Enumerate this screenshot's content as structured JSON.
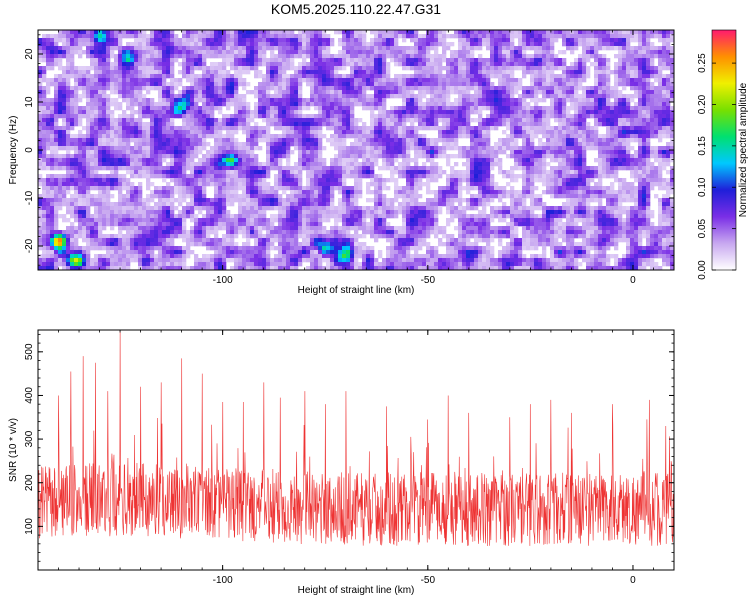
{
  "figure": {
    "title": "KOM5.2025.110.22.47.G31"
  },
  "chart_data": [
    {
      "type": "heatmap",
      "xlabel": "Height of straight line (km)",
      "ylabel": "Frequency (Hz)",
      "xlim": [
        -145,
        10
      ],
      "ylim": [
        -25,
        25
      ],
      "xticks": [
        -100,
        -50,
        0
      ],
      "yticks": [
        -20,
        -10,
        0,
        10,
        20
      ],
      "colorbar": {
        "label": "Normalized spectral amplitude",
        "range": [
          0.0,
          0.29
        ],
        "ticks": [
          "0.00",
          "0.05",
          "0.10",
          "0.15",
          "0.20",
          "0.25"
        ],
        "colormap": [
          "#ffffff",
          "#c8a8f0",
          "#7a2ee6",
          "#1f1fd9",
          "#00c8ff",
          "#00e070",
          "#78e000",
          "#f0f000",
          "#ff9000",
          "#ff1a6e"
        ]
      },
      "hotspots": [
        {
          "x": -140,
          "y": -19,
          "value": 0.22
        },
        {
          "x": -136,
          "y": -23,
          "value": 0.18
        },
        {
          "x": -130,
          "y": 24,
          "value": 0.12
        },
        {
          "x": -123,
          "y": 19,
          "value": 0.11
        },
        {
          "x": -98,
          "y": -2,
          "value": 0.1
        },
        {
          "x": -75,
          "y": -20,
          "value": 0.11
        },
        {
          "x": -70,
          "y": -22,
          "value": 0.1
        },
        {
          "x": -110,
          "y": 9,
          "value": 0.08
        },
        {
          "x": -40,
          "y": -23,
          "value": 0.07
        }
      ]
    },
    {
      "type": "line",
      "xlabel": "Height of straight line (km)",
      "ylabel": "SNR (10 * v/v)",
      "xlim": [
        -145,
        10
      ],
      "ylim": [
        0,
        550
      ],
      "xticks": [
        -100,
        -50,
        0
      ],
      "yticks": [
        100,
        200,
        300,
        400,
        500
      ],
      "color": "#ee3333",
      "points": 1550,
      "baseline_mean": 140,
      "peaks": [
        {
          "x": -140,
          "y": 400
        },
        {
          "x": -137,
          "y": 455
        },
        {
          "x": -134,
          "y": 490
        },
        {
          "x": -131,
          "y": 475
        },
        {
          "x": -128,
          "y": 410
        },
        {
          "x": -125,
          "y": 550
        },
        {
          "x": -120,
          "y": 420
        },
        {
          "x": -115,
          "y": 430
        },
        {
          "x": -110,
          "y": 485
        },
        {
          "x": -105,
          "y": 450
        },
        {
          "x": -100,
          "y": 385
        },
        {
          "x": -95,
          "y": 385
        },
        {
          "x": -90,
          "y": 430
        },
        {
          "x": -86,
          "y": 395
        },
        {
          "x": -80,
          "y": 410
        },
        {
          "x": -75,
          "y": 380
        },
        {
          "x": -70,
          "y": 410
        },
        {
          "x": -60,
          "y": 375
        },
        {
          "x": -50,
          "y": 345
        },
        {
          "x": -45,
          "y": 400
        },
        {
          "x": -40,
          "y": 360
        },
        {
          "x": -30,
          "y": 350
        },
        {
          "x": -25,
          "y": 380
        },
        {
          "x": -20,
          "y": 390
        },
        {
          "x": -15,
          "y": 360
        },
        {
          "x": -5,
          "y": 380
        },
        {
          "x": 4,
          "y": 390
        },
        {
          "x": 8,
          "y": 330
        }
      ]
    }
  ]
}
